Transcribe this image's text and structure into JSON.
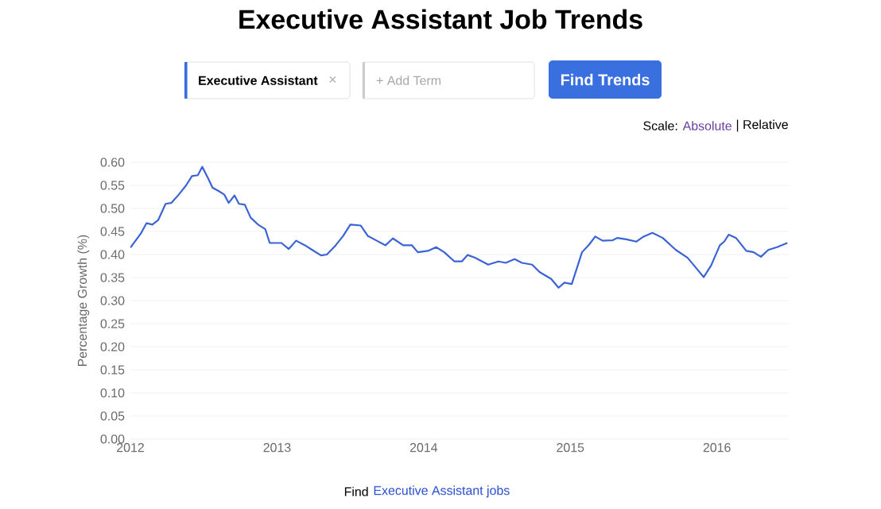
{
  "chart_data": {
    "type": "line",
    "title": "Executive Assistant Job Trends",
    "ylabel": "Percentage Growth (%)",
    "annotations": [
      "Executive Assistant",
      "×",
      "+ Add Term",
      "Find Trends",
      "Scale:",
      "Absolute",
      "| Relative",
      "Find",
      "Executive Assistant jobs"
    ],
    "x": [
      2012.0,
      2012.07,
      2012.11,
      2012.15,
      2012.19,
      2012.24,
      2012.28,
      2012.33,
      2012.38,
      2012.42,
      2012.46,
      2012.49,
      2012.53,
      2012.56,
      2012.6,
      2012.64,
      2012.67,
      2012.71,
      2012.74,
      2012.78,
      2012.82,
      2012.87,
      2012.92,
      2012.95,
      2013.03,
      2013.08,
      2013.13,
      2013.19,
      2013.24,
      2013.3,
      2013.34,
      2013.4,
      2013.45,
      2013.5,
      2013.57,
      2013.62,
      2013.68,
      2013.74,
      2013.79,
      2013.86,
      2013.92,
      2013.96,
      2014.03,
      2014.085,
      2014.14,
      2014.21,
      2014.26,
      2014.3,
      2014.35,
      2014.44,
      2014.51,
      2014.56,
      2014.62,
      2014.67,
      2014.74,
      2014.79,
      2014.87,
      2014.92,
      2014.96,
      2015.01,
      2015.08,
      2015.13,
      2015.17,
      2015.22,
      2015.29,
      2015.32,
      2015.38,
      2015.45,
      2015.5,
      2015.56,
      2015.63,
      2015.72,
      2015.8,
      2015.86,
      2015.91,
      2015.96,
      2016.02,
      2016.05,
      2016.08,
      2016.13,
      2016.2,
      2016.25,
      2016.3,
      2016.35,
      2016.41,
      2016.48
    ],
    "values": [
      0.415,
      0.445,
      0.468,
      0.465,
      0.475,
      0.51,
      0.512,
      0.53,
      0.55,
      0.57,
      0.572,
      0.59,
      0.565,
      0.545,
      0.538,
      0.53,
      0.512,
      0.528,
      0.51,
      0.508,
      0.48,
      0.465,
      0.455,
      0.425,
      0.425,
      0.412,
      0.43,
      0.42,
      0.41,
      0.398,
      0.4,
      0.42,
      0.44,
      0.465,
      0.463,
      0.44,
      0.43,
      0.42,
      0.435,
      0.42,
      0.42,
      0.405,
      0.408,
      0.416,
      0.405,
      0.385,
      0.385,
      0.399,
      0.393,
      0.378,
      0.385,
      0.382,
      0.39,
      0.382,
      0.378,
      0.362,
      0.347,
      0.328,
      0.339,
      0.336,
      0.405,
      0.422,
      0.439,
      0.43,
      0.431,
      0.436,
      0.433,
      0.428,
      0.439,
      0.447,
      0.436,
      0.41,
      0.393,
      0.37,
      0.351,
      0.376,
      0.42,
      0.428,
      0.443,
      0.436,
      0.408,
      0.405,
      0.395,
      0.41,
      0.416,
      0.425
    ],
    "color": "#3b63d6",
    "xlim": [
      2012,
      2016.49
    ],
    "ylim": [
      0,
      0.6
    ],
    "xticks": [
      2012,
      2013,
      2014,
      2015,
      2016
    ],
    "yticks": [
      {
        "value": 0,
        "label": "0.00"
      },
      {
        "value": 0.05,
        "label": "0.05"
      },
      {
        "value": 0.1,
        "label": "0.10"
      },
      {
        "value": 0.15,
        "label": "0.15"
      },
      {
        "value": 0.2,
        "label": "0.20"
      },
      {
        "value": 0.25,
        "label": "0.25"
      },
      {
        "value": 0.3,
        "label": "0.30"
      },
      {
        "value": 0.35,
        "label": "0.35"
      },
      {
        "value": 0.4,
        "label": "0.40"
      },
      {
        "value": 0.45,
        "label": "0.45"
      },
      {
        "value": 0.5,
        "label": "0.50"
      },
      {
        "value": 0.55,
        "label": "0.55"
      },
      {
        "value": 0.6,
        "label": "0.60"
      }
    ],
    "grid": "y"
  }
}
